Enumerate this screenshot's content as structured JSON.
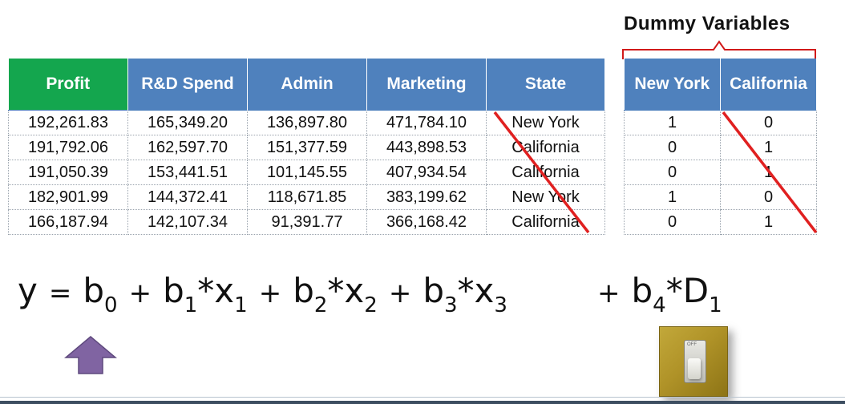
{
  "dummy_header": "Dummy Variables",
  "main_table": {
    "headers": [
      "Profit",
      "R&D Spend",
      "Admin",
      "Marketing",
      "State"
    ],
    "rows": [
      [
        "192,261.83",
        "165,349.20",
        "136,897.80",
        "471,784.10",
        "New York"
      ],
      [
        "191,792.06",
        "162,597.70",
        "151,377.59",
        "443,898.53",
        "California"
      ],
      [
        "191,050.39",
        "153,441.51",
        "101,145.55",
        "407,934.54",
        "California"
      ],
      [
        "182,901.99",
        "144,372.41",
        "118,671.85",
        "383,199.62",
        "New York"
      ],
      [
        "166,187.94",
        "142,107.34",
        "91,391.77",
        "366,168.42",
        "California"
      ]
    ]
  },
  "dummy_table": {
    "headers": [
      "New York",
      "California"
    ],
    "rows": [
      [
        "1",
        "0"
      ],
      [
        "0",
        "1"
      ],
      [
        "0",
        "1"
      ],
      [
        "1",
        "0"
      ],
      [
        "0",
        "1"
      ]
    ]
  },
  "equation": {
    "y": "y",
    "eq": "=",
    "b0": "b",
    "b0_sub": "0",
    "plus1": "+",
    "b1": "b",
    "b1_sub": "1",
    "x1": "*x",
    "x1_sub": "1",
    "plus2": "+",
    "b2": "b",
    "b2_sub": "2",
    "x2": "*x",
    "x2_sub": "2",
    "plus3": "+",
    "b3": "b",
    "b3_sub": "3",
    "x3": "*x",
    "x3_sub": "3",
    "plus4": "+",
    "b4": "b",
    "b4_sub": "4",
    "d1": "*D",
    "d1_sub": "1"
  },
  "switch_label": "OFF",
  "colors": {
    "profit_header": "#14a64e",
    "header_blue": "#4f81bd",
    "strike_red": "#e02020",
    "arrow_purple": "#8064a2"
  },
  "icons": {
    "arrow": "up-arrow-icon",
    "switch": "light-switch-icon"
  }
}
